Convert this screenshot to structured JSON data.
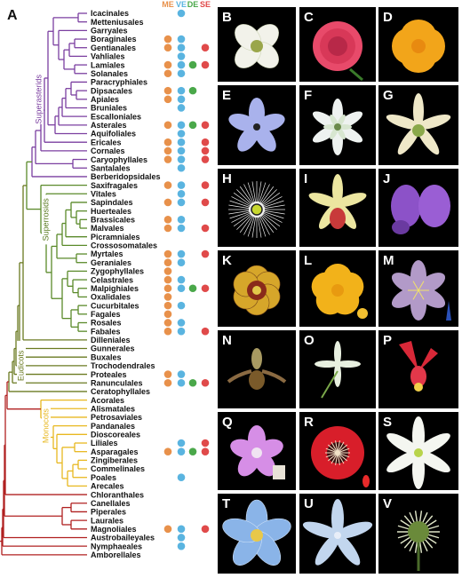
{
  "figure_label": "A",
  "columns": [
    {
      "label": "ME",
      "color": "#e8914b"
    },
    {
      "label": "VE",
      "color": "#5ab4e0"
    },
    {
      "label": "DE",
      "color": "#4aa84a"
    },
    {
      "label": "SE",
      "color": "#e04a4a"
    }
  ],
  "clade_labels": [
    {
      "text": "Superasterids",
      "color": "#7b3fa0"
    },
    {
      "text": "Superrosids",
      "color": "#5a7a20"
    },
    {
      "text": "Eudicots",
      "color": "#6a7a20"
    },
    {
      "text": "Monocots",
      "color": "#e8b820"
    }
  ],
  "orders": [
    {
      "name": "Icacinales",
      "dots": [
        0,
        1,
        0,
        0
      ],
      "group": "purple"
    },
    {
      "name": "Metteniusales",
      "dots": [
        0,
        0,
        0,
        0
      ],
      "group": "purple"
    },
    {
      "name": "Garryales",
      "dots": [
        0,
        0,
        0,
        0
      ],
      "group": "purple"
    },
    {
      "name": "Boraginales",
      "dots": [
        1,
        1,
        0,
        0
      ],
      "group": "purple"
    },
    {
      "name": "Gentianales",
      "dots": [
        1,
        1,
        0,
        1
      ],
      "group": "purple"
    },
    {
      "name": "Vahliales",
      "dots": [
        0,
        1,
        0,
        0
      ],
      "group": "purple"
    },
    {
      "name": "Lamiales",
      "dots": [
        1,
        1,
        1,
        1
      ],
      "group": "purple"
    },
    {
      "name": "Solanales",
      "dots": [
        1,
        1,
        0,
        0
      ],
      "group": "purple"
    },
    {
      "name": "Paracryphiales",
      "dots": [
        0,
        0,
        0,
        0
      ],
      "group": "purple"
    },
    {
      "name": "Dipsacales",
      "dots": [
        1,
        1,
        1,
        0
      ],
      "group": "purple"
    },
    {
      "name": "Apiales",
      "dots": [
        1,
        1,
        0,
        0
      ],
      "group": "purple"
    },
    {
      "name": "Bruniales",
      "dots": [
        0,
        1,
        0,
        0
      ],
      "group": "purple"
    },
    {
      "name": "Escalloniales",
      "dots": [
        0,
        0,
        0,
        0
      ],
      "group": "purple"
    },
    {
      "name": "Asterales",
      "dots": [
        1,
        1,
        1,
        1
      ],
      "group": "purple"
    },
    {
      "name": "Aquifoliales",
      "dots": [
        0,
        1,
        0,
        0
      ],
      "group": "purple"
    },
    {
      "name": "Ericales",
      "dots": [
        1,
        1,
        0,
        1
      ],
      "group": "purple"
    },
    {
      "name": "Cornales",
      "dots": [
        1,
        1,
        0,
        1
      ],
      "group": "purple"
    },
    {
      "name": "Caryophyllales",
      "dots": [
        1,
        1,
        0,
        1
      ],
      "group": "purple"
    },
    {
      "name": "Santalales",
      "dots": [
        0,
        1,
        0,
        0
      ],
      "group": "purple"
    },
    {
      "name": "Berberidopsidales",
      "dots": [
        0,
        0,
        0,
        0
      ],
      "group": "purple"
    },
    {
      "name": "Saxifragales",
      "dots": [
        1,
        1,
        0,
        1
      ],
      "group": "green"
    },
    {
      "name": "Vitales",
      "dots": [
        0,
        1,
        0,
        0
      ],
      "group": "green"
    },
    {
      "name": "Sapindales",
      "dots": [
        1,
        1,
        0,
        1
      ],
      "group": "green"
    },
    {
      "name": "Huerteales",
      "dots": [
        0,
        0,
        0,
        0
      ],
      "group": "green"
    },
    {
      "name": "Brassicales",
      "dots": [
        1,
        1,
        0,
        0
      ],
      "group": "green"
    },
    {
      "name": "Malvales",
      "dots": [
        1,
        1,
        0,
        1
      ],
      "group": "green"
    },
    {
      "name": "Picramniales",
      "dots": [
        0,
        0,
        0,
        0
      ],
      "group": "green"
    },
    {
      "name": "Crossosomatales",
      "dots": [
        0,
        0,
        0,
        0
      ],
      "group": "green"
    },
    {
      "name": "Myrtales",
      "dots": [
        1,
        1,
        0,
        1
      ],
      "group": "green"
    },
    {
      "name": "Geraniales",
      "dots": [
        1,
        1,
        0,
        0
      ],
      "group": "green"
    },
    {
      "name": "Zygophyllales",
      "dots": [
        1,
        0,
        0,
        0
      ],
      "group": "green"
    },
    {
      "name": "Celastrales",
      "dots": [
        1,
        1,
        0,
        0
      ],
      "group": "green"
    },
    {
      "name": "Malpighiales",
      "dots": [
        1,
        1,
        1,
        1
      ],
      "group": "green"
    },
    {
      "name": "Oxalidales",
      "dots": [
        1,
        0,
        0,
        0
      ],
      "group": "green"
    },
    {
      "name": "Cucurbitales",
      "dots": [
        1,
        1,
        0,
        0
      ],
      "group": "green"
    },
    {
      "name": "Fagales",
      "dots": [
        1,
        0,
        0,
        0
      ],
      "group": "green"
    },
    {
      "name": "Rosales",
      "dots": [
        1,
        1,
        0,
        0
      ],
      "group": "green"
    },
    {
      "name": "Fabales",
      "dots": [
        1,
        1,
        0,
        1
      ],
      "group": "green"
    },
    {
      "name": "Dilleniales",
      "dots": [
        0,
        0,
        0,
        0
      ],
      "group": "green"
    },
    {
      "name": "Gunnerales",
      "dots": [
        0,
        0,
        0,
        0
      ],
      "group": "olive"
    },
    {
      "name": "Buxales",
      "dots": [
        0,
        0,
        0,
        0
      ],
      "group": "olive"
    },
    {
      "name": "Trochodendrales",
      "dots": [
        0,
        0,
        0,
        0
      ],
      "group": "olive"
    },
    {
      "name": "Proteales",
      "dots": [
        1,
        1,
        0,
        0
      ],
      "group": "olive"
    },
    {
      "name": "Ranunculales",
      "dots": [
        1,
        1,
        1,
        1
      ],
      "group": "olive"
    },
    {
      "name": "Ceratophyllales",
      "dots": [
        0,
        0,
        0,
        0
      ],
      "group": "olive"
    },
    {
      "name": "Acorales",
      "dots": [
        0,
        0,
        0,
        0
      ],
      "group": "yellow"
    },
    {
      "name": "Alismatales",
      "dots": [
        0,
        0,
        0,
        0
      ],
      "group": "yellow"
    },
    {
      "name": "Petrosaviales",
      "dots": [
        0,
        0,
        0,
        0
      ],
      "group": "yellow"
    },
    {
      "name": "Pandanales",
      "dots": [
        0,
        0,
        0,
        0
      ],
      "group": "yellow"
    },
    {
      "name": "Dioscoreales",
      "dots": [
        0,
        0,
        0,
        0
      ],
      "group": "yellow"
    },
    {
      "name": "Liliales",
      "dots": [
        0,
        1,
        0,
        1
      ],
      "group": "yellow"
    },
    {
      "name": "Asparagales",
      "dots": [
        1,
        1,
        1,
        1
      ],
      "group": "yellow"
    },
    {
      "name": "Zingiberales",
      "dots": [
        0,
        0,
        0,
        0
      ],
      "group": "yellow"
    },
    {
      "name": "Commelinales",
      "dots": [
        0,
        0,
        0,
        0
      ],
      "group": "yellow"
    },
    {
      "name": "Poales",
      "dots": [
        0,
        1,
        0,
        0
      ],
      "group": "yellow"
    },
    {
      "name": "Arecales",
      "dots": [
        0,
        0,
        0,
        0
      ],
      "group": "yellow"
    },
    {
      "name": "Chloranthales",
      "dots": [
        0,
        0,
        0,
        0
      ],
      "group": "red"
    },
    {
      "name": "Canellales",
      "dots": [
        0,
        0,
        0,
        0
      ],
      "group": "red"
    },
    {
      "name": "Piperales",
      "dots": [
        0,
        0,
        0,
        0
      ],
      "group": "red"
    },
    {
      "name": "Laurales",
      "dots": [
        0,
        0,
        0,
        0
      ],
      "group": "red"
    },
    {
      "name": "Magnoliales",
      "dots": [
        1,
        1,
        0,
        1
      ],
      "group": "red"
    },
    {
      "name": "Austrobaileyales",
      "dots": [
        0,
        1,
        0,
        0
      ],
      "group": "red"
    },
    {
      "name": "Nymphaeales",
      "dots": [
        0,
        1,
        0,
        0
      ],
      "group": "red"
    },
    {
      "name": "Amborellales",
      "dots": [
        0,
        0,
        0,
        0
      ],
      "group": "red"
    }
  ],
  "group_colors": {
    "purple": "#7b3fa0",
    "green": "#5a8a2a",
    "olive": "#6a7a20",
    "yellow": "#e8b820",
    "red": "#b02020"
  },
  "panels": [
    {
      "letter": "B",
      "flower": "white-cross"
    },
    {
      "letter": "C",
      "flower": "pink-rose"
    },
    {
      "letter": "D",
      "flower": "orange-poppy"
    },
    {
      "letter": "E",
      "flower": "lilac-star"
    },
    {
      "letter": "F",
      "flower": "white-fringed-star"
    },
    {
      "letter": "G",
      "flower": "cream-fringed"
    },
    {
      "letter": "H",
      "flower": "white-filaments"
    },
    {
      "letter": "I",
      "flower": "yellow-orchid"
    },
    {
      "letter": "J",
      "flower": "purple-pea"
    },
    {
      "letter": "K",
      "flower": "yellow-cup"
    },
    {
      "letter": "L",
      "flower": "yellow-buttercup"
    },
    {
      "letter": "M",
      "flower": "mauve-star"
    },
    {
      "letter": "N",
      "flower": "slipper-orchid"
    },
    {
      "letter": "O",
      "flower": "green-orchid"
    },
    {
      "letter": "P",
      "flower": "red-columbine"
    },
    {
      "letter": "Q",
      "flower": "pink-trumpet"
    },
    {
      "letter": "R",
      "flower": "red-anemone"
    },
    {
      "letter": "S",
      "flower": "white-spotted-star"
    },
    {
      "letter": "T",
      "flower": "blue-fuzzy-star"
    },
    {
      "letter": "U",
      "flower": "pale-blue-orchid"
    },
    {
      "letter": "V",
      "flower": "green-spiky-cluster"
    }
  ]
}
